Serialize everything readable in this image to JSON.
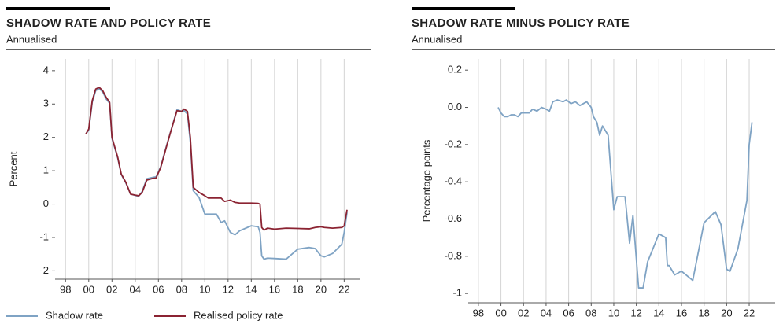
{
  "chart_data": [
    {
      "type": "line",
      "title": "SHADOW RATE AND POLICY RATE",
      "subtitle": "Annualised",
      "y_label": "Percent",
      "x": [
        1999.75,
        2000.0,
        2000.3,
        2000.6,
        2000.9,
        2001.2,
        2001.5,
        2001.8,
        2002.0,
        2002.5,
        2002.8,
        2003.2,
        2003.6,
        2004.0,
        2004.3,
        2004.6,
        2005.0,
        2005.5,
        2005.8,
        2006.2,
        2006.6,
        2007.0,
        2007.3,
        2007.6,
        2008.0,
        2008.2,
        2008.5,
        2008.75,
        2009.0,
        2009.5,
        2010.0,
        2010.3,
        2011.0,
        2011.4,
        2011.7,
        2012.2,
        2012.6,
        2013.0,
        2014.0,
        2014.6,
        2014.75,
        2014.9,
        2015.1,
        2015.4,
        2016.0,
        2017.0,
        2018.0,
        2019.0,
        2019.5,
        2020.0,
        2020.3,
        2021.0,
        2021.8,
        2022.0,
        2022.25
      ],
      "series": [
        {
          "name": "Shadow rate",
          "color": "#7fa3c4",
          "values": [
            2.1,
            2.22,
            3.05,
            3.4,
            3.46,
            3.36,
            3.15,
            3.02,
            1.97,
            1.37,
            0.89,
            0.63,
            0.3,
            0.26,
            0.23,
            0.38,
            0.76,
            0.8,
            0.82,
            1.12,
            1.63,
            2.11,
            2.47,
            2.83,
            2.78,
            2.8,
            2.7,
            1.85,
            0.4,
            0.2,
            -0.3,
            -0.3,
            -0.3,
            -0.55,
            -0.5,
            -0.85,
            -0.92,
            -0.8,
            -0.65,
            -0.68,
            -0.85,
            -1.55,
            -1.65,
            -1.62,
            -1.63,
            -1.65,
            -1.35,
            -1.3,
            -1.33,
            -1.55,
            -1.58,
            -1.48,
            -1.2,
            -0.85,
            -0.25
          ]
        },
        {
          "name": "Realised policy rate",
          "color": "#8b2332",
          "values": [
            2.1,
            2.25,
            3.1,
            3.45,
            3.5,
            3.4,
            3.2,
            3.05,
            2.0,
            1.4,
            0.9,
            0.65,
            0.3,
            0.27,
            0.25,
            0.35,
            0.72,
            0.77,
            0.78,
            1.1,
            1.6,
            2.1,
            2.45,
            2.8,
            2.78,
            2.85,
            2.78,
            2.0,
            0.5,
            0.35,
            0.25,
            0.18,
            0.18,
            0.18,
            0.08,
            0.12,
            0.05,
            0.03,
            0.03,
            0.02,
            0.0,
            -0.7,
            -0.78,
            -0.72,
            -0.75,
            -0.72,
            -0.73,
            -0.74,
            -0.7,
            -0.68,
            -0.7,
            -0.72,
            -0.7,
            -0.65,
            -0.17
          ]
        }
      ],
      "xlim": [
        1997.1,
        2023.4
      ],
      "xticks": [
        {
          "value": 1998,
          "label": "98"
        },
        {
          "value": 2000,
          "label": "00"
        },
        {
          "value": 2002,
          "label": "02"
        },
        {
          "value": 2004,
          "label": "04"
        },
        {
          "value": 2006,
          "label": "06"
        },
        {
          "value": 2008,
          "label": "08"
        },
        {
          "value": 2010,
          "label": "10"
        },
        {
          "value": 2012,
          "label": "12"
        },
        {
          "value": 2014,
          "label": "14"
        },
        {
          "value": 2016,
          "label": "16"
        },
        {
          "value": 2018,
          "label": "18"
        },
        {
          "value": 2020,
          "label": "20"
        },
        {
          "value": 2022,
          "label": "22"
        }
      ],
      "ylim": [
        -2.25,
        4.35
      ],
      "yticks": [
        4,
        3,
        2,
        1,
        0,
        -1,
        -2
      ],
      "grid": true,
      "legend": "bottom"
    },
    {
      "type": "line",
      "title": "SHADOW RATE MINUS POLICY RATE",
      "subtitle": "Annualised",
      "y_label": "Percentage points",
      "x": [
        1999.75,
        2000.0,
        2000.3,
        2000.6,
        2000.9,
        2001.2,
        2001.5,
        2001.8,
        2002.0,
        2002.5,
        2002.8,
        2003.2,
        2003.6,
        2004.0,
        2004.3,
        2004.6,
        2005.0,
        2005.5,
        2005.8,
        2006.2,
        2006.6,
        2007.0,
        2007.3,
        2007.6,
        2008.0,
        2008.2,
        2008.5,
        2008.75,
        2009.0,
        2009.5,
        2010.0,
        2010.3,
        2011.0,
        2011.4,
        2011.7,
        2012.2,
        2012.6,
        2013.0,
        2014.0,
        2014.6,
        2014.75,
        2014.9,
        2015.1,
        2015.4,
        2016.0,
        2017.0,
        2018.0,
        2019.0,
        2019.5,
        2020.0,
        2020.3,
        2021.0,
        2021.8,
        2022.0,
        2022.25
      ],
      "series": [
        {
          "color": "#7fa3c4",
          "values": [
            0.0,
            -0.03,
            -0.05,
            -0.05,
            -0.04,
            -0.04,
            -0.05,
            -0.03,
            -0.03,
            -0.03,
            -0.01,
            -0.02,
            0.0,
            -0.01,
            -0.02,
            0.03,
            0.04,
            0.03,
            0.04,
            0.02,
            0.03,
            0.01,
            0.02,
            0.03,
            0.0,
            -0.05,
            -0.08,
            -0.15,
            -0.1,
            -0.15,
            -0.55,
            -0.48,
            -0.48,
            -0.73,
            -0.58,
            -0.97,
            -0.97,
            -0.83,
            -0.68,
            -0.7,
            -0.85,
            -0.85,
            -0.87,
            -0.9,
            -0.88,
            -0.93,
            -0.62,
            -0.56,
            -0.63,
            -0.87,
            -0.88,
            -0.76,
            -0.5,
            -0.2,
            -0.08
          ]
        }
      ],
      "xlim": [
        1997.1,
        2024.3
      ],
      "xticks": [
        {
          "value": 1998,
          "label": "98"
        },
        {
          "value": 2000,
          "label": "00"
        },
        {
          "value": 2002,
          "label": "02"
        },
        {
          "value": 2004,
          "label": "04"
        },
        {
          "value": 2006,
          "label": "06"
        },
        {
          "value": 2008,
          "label": "08"
        },
        {
          "value": 2010,
          "label": "10"
        },
        {
          "value": 2012,
          "label": "12"
        },
        {
          "value": 2014,
          "label": "14"
        },
        {
          "value": 2016,
          "label": "16"
        },
        {
          "value": 2018,
          "label": "18"
        },
        {
          "value": 2020,
          "label": "20"
        },
        {
          "value": 2022,
          "label": "22"
        }
      ],
      "ylim": [
        -1.05,
        0.26
      ],
      "yticks": [
        0.2,
        {
          "value": 0,
          "label": "0.0"
        },
        -0.2,
        -0.4,
        -0.6,
        -0.8,
        -1.0
      ],
      "grid": true
    }
  ]
}
